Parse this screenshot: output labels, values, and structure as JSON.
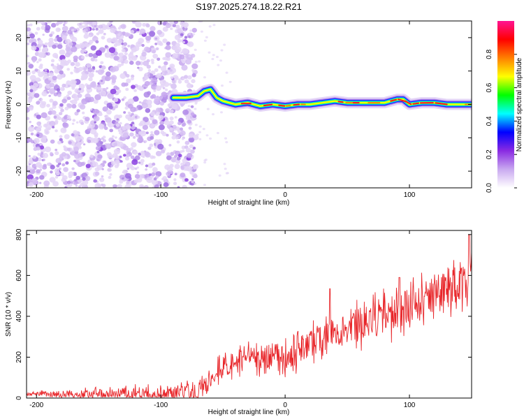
{
  "title": "S197.2025.274.18.22.R21",
  "chart_data": [
    {
      "type": "heatmap",
      "name": "spectrogram",
      "xlabel": "Height of straight line (km)",
      "ylabel": "Frequency (Hz)",
      "xlim": [
        -208,
        150
      ],
      "ylim": [
        -25,
        25
      ],
      "xticks": [
        -200,
        -100,
        0,
        100
      ],
      "xtick_labels": [
        "-200",
        "-100",
        "0",
        "100"
      ],
      "yticks": [
        -20,
        -10,
        0,
        10,
        20
      ],
      "ytick_labels": [
        "-20",
        "-10",
        "0",
        "10",
        "20"
      ],
      "noise_region": {
        "x": [
          -208,
          -72
        ],
        "y": [
          -25,
          25
        ],
        "amplitude": "0.0-0.2"
      },
      "signal_track": {
        "x": [
          -90,
          -80,
          -70,
          -65,
          -60,
          -55,
          -50,
          -45,
          -40,
          -30,
          -20,
          -10,
          0,
          10,
          20,
          30,
          40,
          50,
          60,
          70,
          80,
          90,
          95,
          100,
          110,
          120,
          130,
          140,
          150
        ],
        "y": [
          2,
          2,
          2.5,
          4,
          4.5,
          2,
          1,
          0.5,
          0,
          0.5,
          -0.5,
          0,
          -0.5,
          0,
          0,
          0.5,
          1,
          0.5,
          0.5,
          0.5,
          0.5,
          1.5,
          1.5,
          0,
          0.5,
          0.5,
          0,
          0,
          0
        ],
        "peak_amplitude": 1.0
      }
    },
    {
      "type": "colorbar",
      "label": "Normalized spectral amplitude",
      "range": [
        0,
        1
      ],
      "ticks": [
        0.0,
        0.2,
        0.4,
        0.6,
        0.8
      ],
      "tick_labels": [
        "0.0",
        "0.2",
        "0.4",
        "0.6",
        "0.8"
      ],
      "colormap": [
        "#ffffff",
        "#c9a9f0",
        "#8a2be2",
        "#0000ff",
        "#00ffff",
        "#00ff00",
        "#ffff00",
        "#ff8000",
        "#ff0000",
        "#ff1493"
      ]
    },
    {
      "type": "line",
      "name": "snr",
      "xlabel": "Height of straight line (km)",
      "ylabel": "SNR (10 * v/v)",
      "xlim": [
        -208,
        150
      ],
      "ylim": [
        0,
        820
      ],
      "xticks": [
        -200,
        -100,
        0,
        100
      ],
      "xtick_labels": [
        "-200",
        "-100",
        "0",
        "100"
      ],
      "yticks": [
        0,
        200,
        400,
        600,
        800
      ],
      "ytick_labels": [
        "0",
        "200",
        "400",
        "600",
        "800"
      ],
      "color": "#e8262a",
      "series_trend": {
        "x": [
          -208,
          -150,
          -100,
          -70,
          -62,
          -55,
          -50,
          -40,
          -30,
          -20,
          -10,
          0,
          10,
          20,
          30,
          40,
          50,
          60,
          70,
          80,
          90,
          100,
          110,
          120,
          130,
          140,
          150
        ],
        "y": [
          20,
          20,
          20,
          22,
          80,
          140,
          150,
          170,
          185,
          200,
          210,
          200,
          230,
          260,
          300,
          330,
          340,
          360,
          380,
          400,
          420,
          440,
          470,
          500,
          540,
          570,
          620
        ]
      },
      "noise_amplitude": {
        "x": [
          -208,
          -65,
          150
        ],
        "y": [
          10,
          60,
          130
        ]
      },
      "spikes": [
        {
          "x": 36,
          "y": 535
        },
        {
          "x": 92,
          "y": 590
        },
        {
          "x": 148,
          "y": 800
        }
      ]
    }
  ]
}
